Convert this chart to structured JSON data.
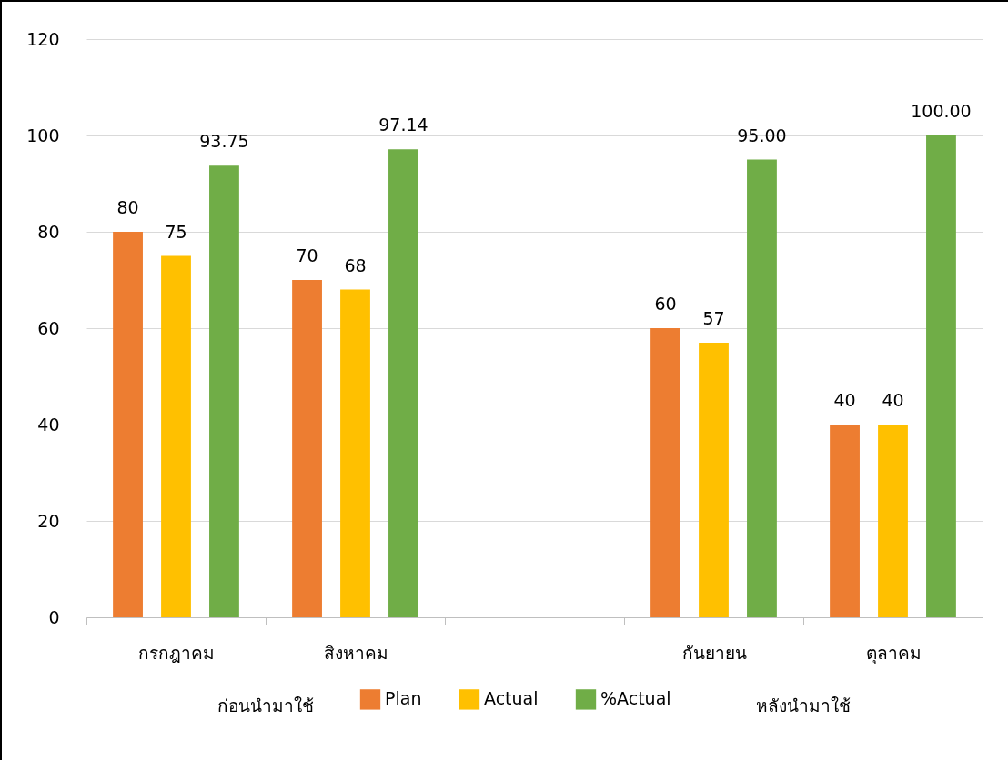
{
  "chart_data": {
    "type": "bar",
    "categories": [
      "กรกฎาคม",
      "สิงหาคม",
      null,
      "กันยายน",
      "ตุลาคม"
    ],
    "series": [
      {
        "name": "Plan",
        "color": "#ed7d31",
        "values": [
          80,
          70,
          null,
          60,
          40
        ],
        "value_labels": [
          "80",
          "70",
          null,
          "60",
          "40"
        ]
      },
      {
        "name": "Actual",
        "color": "#ffc000",
        "values": [
          75,
          68,
          null,
          57,
          40
        ],
        "value_labels": [
          "75",
          "68",
          null,
          "57",
          "40"
        ]
      },
      {
        "name": "%Actual",
        "color": "#70ad47",
        "values": [
          93.75,
          97.14,
          null,
          95,
          100
        ],
        "value_labels": [
          "93.75",
          "97.14",
          null,
          "95.00",
          "100.00"
        ]
      }
    ],
    "ylim": [
      0,
      120
    ],
    "yticks": [
      0,
      20,
      40,
      60,
      80,
      100,
      120
    ],
    "grid": "y",
    "legend": "bottom",
    "annotations": [
      "ก่อนนำมาใช้",
      "หลังนำมาใช้"
    ]
  }
}
